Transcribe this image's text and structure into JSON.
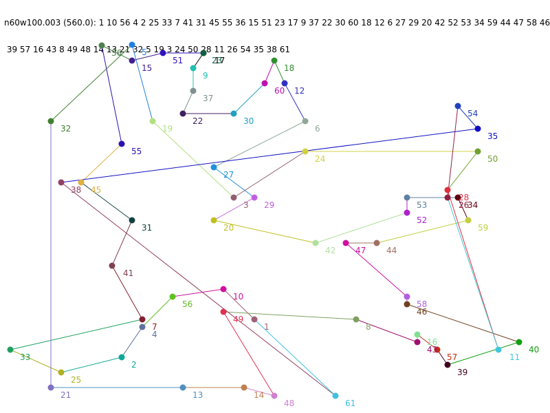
{
  "header": {
    "line1": "n60w100.003 (560.0): 1 10 56 4 2 25 33 7 41 31 45 55 36 15 51 23 17 9 37 22 30 60 18 12 6 27 29 20 42 52 53 34 59 44 47 58 46 40",
    "line2": " 39 57 16 43 8 49 48 14 13 21 32 5 19 3 24 50 28 11 26 54 35 38 61"
  },
  "nodes": [
    {
      "id": "1",
      "color": "#a06078"
    },
    {
      "id": "2",
      "color": "#10a898"
    },
    {
      "id": "3",
      "color": "#906070"
    },
    {
      "id": "4",
      "color": "#6070a0"
    },
    {
      "id": "5",
      "color": "#2080e0"
    },
    {
      "id": "6",
      "color": "#90a898"
    },
    {
      "id": "7",
      "color": "#802030"
    },
    {
      "id": "8",
      "color": "#80a060"
    },
    {
      "id": "9",
      "color": "#20c0b0"
    },
    {
      "id": "10",
      "color": "#d010a0"
    },
    {
      "id": "11",
      "color": "#40c8d8"
    },
    {
      "id": "12",
      "color": "#3030c0"
    },
    {
      "id": "13",
      "color": "#5090c0"
    },
    {
      "id": "14",
      "color": "#c08050"
    },
    {
      "id": "15",
      "color": "#402090"
    },
    {
      "id": "16",
      "color": "#80e090"
    },
    {
      "id": "17",
      "color": "#000000"
    },
    {
      "id": "18",
      "color": "#309030"
    },
    {
      "id": "19",
      "color": "#b0e080"
    },
    {
      "id": "20",
      "color": "#c0c020"
    },
    {
      "id": "21",
      "color": "#8070c0"
    },
    {
      "id": "22",
      "color": "#402060"
    },
    {
      "id": "23",
      "color": "#106040"
    },
    {
      "id": "24",
      "color": "#d0d040"
    },
    {
      "id": "25",
      "color": "#b0b020"
    },
    {
      "id": "26",
      "color": "#902040"
    },
    {
      "id": "27",
      "color": "#2090e0"
    },
    {
      "id": "28",
      "color": "#e03040"
    },
    {
      "id": "29",
      "color": "#c060e0"
    },
    {
      "id": "30",
      "color": "#20a0c0"
    },
    {
      "id": "31",
      "color": "#104040"
    },
    {
      "id": "32",
      "color": "#408030"
    },
    {
      "id": "33",
      "color": "#20a060"
    },
    {
      "id": "34",
      "color": "#600010"
    },
    {
      "id": "35",
      "color": "#1010c0"
    },
    {
      "id": "36",
      "color": "#508050"
    },
    {
      "id": "37",
      "color": "#809090"
    },
    {
      "id": "38",
      "color": "#904060"
    },
    {
      "id": "39",
      "color": "#400020"
    },
    {
      "id": "40",
      "color": "#10a010"
    },
    {
      "id": "41",
      "color": "#804050"
    },
    {
      "id": "42",
      "color": "#b0e0a0"
    },
    {
      "id": "43",
      "color": "#a01070"
    },
    {
      "id": "44",
      "color": "#a07060"
    },
    {
      "id": "45",
      "color": "#e0b040"
    },
    {
      "id": "46",
      "color": "#704020"
    },
    {
      "id": "47",
      "color": "#d010a0"
    },
    {
      "id": "48",
      "color": "#d080d0"
    },
    {
      "id": "49",
      "color": "#e03050"
    },
    {
      "id": "50",
      "color": "#70a030"
    },
    {
      "id": "51",
      "color": "#3010c0"
    },
    {
      "id": "52",
      "color": "#b020d0"
    },
    {
      "id": "53",
      "color": "#6080a0"
    },
    {
      "id": "54",
      "color": "#2040c0"
    },
    {
      "id": "55",
      "color": "#3010b0"
    },
    {
      "id": "56",
      "color": "#60c020"
    },
    {
      "id": "57",
      "color": "#c03010"
    },
    {
      "id": "58",
      "color": "#b060e0"
    },
    {
      "id": "59",
      "color": "#c0d040"
    },
    {
      "id": "60",
      "color": "#c010b0"
    },
    {
      "id": "61",
      "color": "#40c0e0"
    }
  ],
  "tour": [
    "1",
    "10",
    "56",
    "4",
    "2",
    "25",
    "33",
    "7",
    "41",
    "31",
    "45",
    "55",
    "36",
    "15",
    "51",
    "23",
    "17",
    "9",
    "37",
    "22",
    "30",
    "60",
    "18",
    "12",
    "6",
    "27",
    "29",
    "20",
    "42",
    "52",
    "53",
    "34",
    "59",
    "44",
    "47",
    "58",
    "46",
    "40",
    "39",
    "57",
    "16",
    "43",
    "8",
    "49",
    "48",
    "14",
    "13",
    "21",
    "32",
    "5",
    "19",
    "3",
    "24",
    "50",
    "28",
    "11",
    "26",
    "54",
    "35",
    "38",
    "61"
  ]
}
